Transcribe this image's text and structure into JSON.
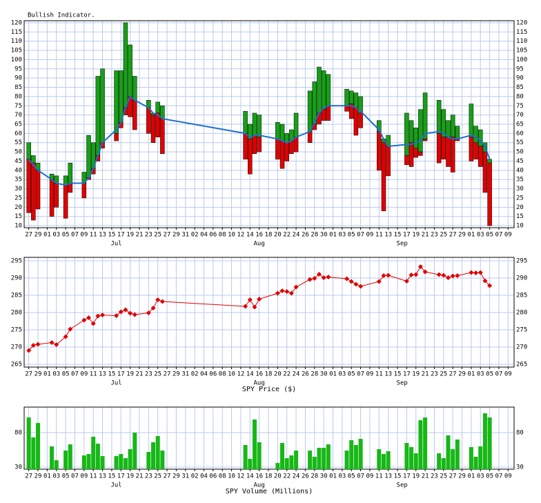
{
  "chart_data": [
    {
      "type": "indicator",
      "title": "Bullish Indicator.",
      "x": [
        0,
        1,
        2,
        5,
        6,
        8,
        9,
        12,
        13,
        14,
        15,
        16,
        19,
        20,
        21,
        22,
        23,
        26,
        27,
        28,
        29,
        47,
        48,
        49,
        50,
        54,
        55,
        56,
        57,
        58,
        61,
        62,
        63,
        64,
        65,
        69,
        70,
        71,
        72,
        76,
        77,
        78,
        82,
        83,
        84,
        85,
        86,
        89,
        90,
        91,
        92,
        93,
        96,
        97,
        98,
        99,
        100
      ],
      "xlim": [
        -1,
        105.3
      ],
      "xticks": [
        {
          "value": 0,
          "label": "27"
        },
        {
          "value": 2,
          "label": "29"
        },
        {
          "value": 4,
          "label": "01"
        },
        {
          "value": 6,
          "label": "03"
        },
        {
          "value": 8,
          "label": "05"
        },
        {
          "value": 10,
          "label": "07"
        },
        {
          "value": 12,
          "label": "09"
        },
        {
          "value": 14,
          "label": "11"
        },
        {
          "value": 16,
          "label": "13"
        },
        {
          "value": 18,
          "label": "15"
        },
        {
          "value": 20,
          "label": "17"
        },
        {
          "value": 22,
          "label": "19"
        },
        {
          "value": 24,
          "label": "21"
        },
        {
          "value": 26,
          "label": "23"
        },
        {
          "value": 28,
          "label": "25"
        },
        {
          "value": 30,
          "label": "27"
        },
        {
          "value": 32,
          "label": "29"
        },
        {
          "value": 34,
          "label": "31"
        },
        {
          "value": 36,
          "label": "02"
        },
        {
          "value": 38,
          "label": "04"
        },
        {
          "value": 40,
          "label": "06"
        },
        {
          "value": 42,
          "label": "08"
        },
        {
          "value": 44,
          "label": "10"
        },
        {
          "value": 46,
          "label": "12"
        },
        {
          "value": 48,
          "label": "14"
        },
        {
          "value": 50,
          "label": "16"
        },
        {
          "value": 52,
          "label": "18"
        },
        {
          "value": 54,
          "label": "20"
        },
        {
          "value": 56,
          "label": "22"
        },
        {
          "value": 58,
          "label": "24"
        },
        {
          "value": 60,
          "label": "26"
        },
        {
          "value": 62,
          "label": "28"
        },
        {
          "value": 64,
          "label": "30"
        },
        {
          "value": 66,
          "label": "01"
        },
        {
          "value": 68,
          "label": "03"
        },
        {
          "value": 70,
          "label": "05"
        },
        {
          "value": 72,
          "label": "07"
        },
        {
          "value": 74,
          "label": "09"
        },
        {
          "value": 76,
          "label": "11"
        },
        {
          "value": 78,
          "label": "13"
        },
        {
          "value": 80,
          "label": "15"
        },
        {
          "value": 82,
          "label": "17"
        },
        {
          "value": 84,
          "label": "19"
        },
        {
          "value": 86,
          "label": "21"
        },
        {
          "value": 88,
          "label": "23"
        },
        {
          "value": 90,
          "label": "25"
        },
        {
          "value": 92,
          "label": "27"
        },
        {
          "value": 94,
          "label": "29"
        },
        {
          "value": 96,
          "label": "01"
        },
        {
          "value": 98,
          "label": "03"
        },
        {
          "value": 100,
          "label": "05"
        },
        {
          "value": 102,
          "label": "07"
        },
        {
          "value": 104,
          "label": "09"
        }
      ],
      "xmonths": [
        {
          "value": 19,
          "label": "Jul"
        },
        {
          "value": 50,
          "label": "Aug"
        },
        {
          "value": 81,
          "label": "Sep"
        }
      ],
      "high": [
        55,
        48,
        44,
        38,
        37,
        37,
        44,
        39,
        59,
        55,
        91,
        95,
        94,
        94,
        120,
        108,
        91,
        78,
        71,
        77,
        75,
        72,
        65,
        71,
        70,
        66,
        65,
        60,
        62,
        71,
        83,
        88,
        96,
        94,
        92,
        84,
        83,
        82,
        80,
        67,
        57,
        59,
        71,
        67,
        63,
        73,
        82,
        78,
        73,
        67,
        70,
        64,
        76,
        64,
        62,
        55,
        46
      ],
      "mid": [
        46,
        44,
        40,
        35,
        33,
        32,
        33,
        33,
        36,
        41,
        48,
        55,
        60,
        66,
        74,
        80,
        78,
        74,
        70,
        71,
        68,
        60,
        57,
        59,
        58,
        57,
        56,
        55,
        56,
        58,
        61,
        65,
        71,
        73,
        75,
        75,
        76,
        74,
        71,
        61,
        55,
        53,
        48,
        55,
        52,
        50,
        57,
        60,
        58,
        58,
        58,
        57,
        58,
        55,
        53,
        50,
        44
      ],
      "low": [
        17,
        13,
        19,
        15,
        20,
        14,
        28,
        25,
        35,
        38,
        45,
        52,
        56,
        63,
        70,
        69,
        62,
        60,
        55,
        58,
        49,
        46,
        38,
        49,
        50,
        46,
        41,
        45,
        49,
        50,
        55,
        62,
        65,
        67,
        67,
        72,
        68,
        59,
        63,
        40,
        18,
        37,
        43,
        42,
        47,
        48,
        56,
        44,
        46,
        42,
        39,
        56,
        45,
        46,
        42,
        28,
        10
      ],
      "average": [
        46,
        43,
        40,
        35,
        33,
        32,
        33,
        33,
        36,
        41,
        48,
        55,
        62,
        66,
        74,
        80,
        78,
        74,
        71,
        70,
        68,
        60,
        58,
        59,
        59,
        57,
        56,
        55,
        56,
        58,
        61,
        66,
        71,
        74,
        75,
        75,
        75,
        74,
        72,
        62,
        57,
        53,
        54,
        54,
        55,
        56,
        60,
        61,
        60,
        58,
        57,
        57,
        59,
        58,
        56,
        53,
        46
      ],
      "up_color": "#16a016",
      "down_color": "#e00000",
      "line_color": "#1c6fd2",
      "ylim": [
        8.9,
        121.1
      ],
      "yticks": [
        10,
        15,
        20,
        25,
        30,
        35,
        40,
        45,
        50,
        55,
        60,
        65,
        70,
        75,
        80,
        85,
        90,
        95,
        100,
        105,
        110,
        115,
        120
      ],
      "grid": true
    },
    {
      "type": "line",
      "ylabel": "SPY Price ($)",
      "values": [
        269,
        270.5,
        270.8,
        271.3,
        270.7,
        273,
        275.2,
        277.8,
        278.5,
        276.8,
        279,
        279.3,
        279.1,
        280.2,
        280.8,
        279.8,
        279.4,
        279.9,
        281.3,
        283.7,
        283.2,
        281.8,
        283.7,
        281.6,
        283.9,
        285.6,
        286.3,
        286.1,
        285.6,
        287.4,
        289.6,
        289.9,
        291.1,
        290.1,
        290.3,
        289.8,
        289,
        288.2,
        287.6,
        289,
        290.7,
        290.8,
        289.1,
        290.9,
        291,
        293.3,
        291.8,
        291,
        290.8,
        290.1,
        290.6,
        290.7,
        291.6,
        291.5,
        291.6,
        289.2,
        287.8
      ],
      "color": "#e00000",
      "ylim": [
        264.2,
        296
      ],
      "yticks": [
        265,
        270,
        275,
        280,
        285,
        290,
        295
      ],
      "grid": true
    },
    {
      "type": "bar",
      "ylabel": "SPY Volume (Millions)",
      "values": [
        102,
        73,
        94,
        60,
        40,
        54,
        63,
        47,
        49,
        74,
        64,
        46,
        46,
        49,
        43,
        56,
        80,
        52,
        66,
        75,
        54,
        62,
        42,
        99,
        66,
        36,
        65,
        43,
        47,
        54,
        54,
        45,
        58,
        58,
        63,
        54,
        69,
        62,
        71,
        56,
        49,
        53,
        65,
        59,
        50,
        98,
        102,
        50,
        43,
        76,
        56,
        70,
        59,
        45,
        60,
        108,
        102
      ],
      "color": "#16b816",
      "ylim": [
        27,
        117
      ],
      "yticks": [
        30,
        80
      ],
      "grid": true
    }
  ]
}
